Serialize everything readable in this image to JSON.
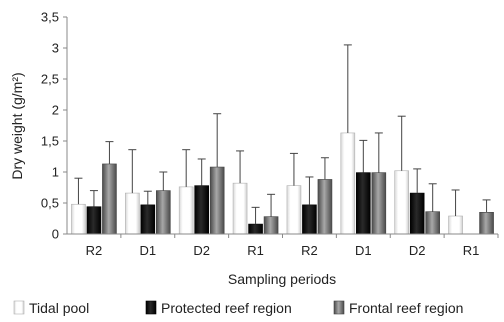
{
  "chart_data": {
    "type": "bar",
    "title": "",
    "xlabel": "Sampling periods",
    "ylabel": "Dry  weight (g/m²)",
    "categories": [
      "R2",
      "D1",
      "D2",
      "R1",
      "R2",
      "D1",
      "D2",
      "R1"
    ],
    "ylim": [
      0,
      3.5
    ],
    "y_ticks": [
      "0",
      "0,5",
      "1",
      "1,5",
      "2",
      "2,5",
      "3",
      "3,5"
    ],
    "grid": false,
    "legend_position": "bottom",
    "error_bars": "upper",
    "series": [
      {
        "name": "Tidal pool",
        "color": "#ffffff",
        "values": [
          0.48,
          0.66,
          0.76,
          0.82,
          0.78,
          1.63,
          1.02,
          0.29
        ],
        "errors": [
          0.42,
          0.7,
          0.6,
          0.52,
          0.52,
          1.42,
          0.88,
          0.42
        ]
      },
      {
        "name": "Protected reef region",
        "color": "#1a1a1a",
        "values": [
          0.44,
          0.47,
          0.78,
          0.16,
          0.47,
          0.99,
          0.66,
          null
        ],
        "errors": [
          0.26,
          0.22,
          0.43,
          0.27,
          0.45,
          0.52,
          0.39,
          null
        ]
      },
      {
        "name": "Frontal reef region",
        "color": "#7a7a7a",
        "values": [
          1.13,
          0.7,
          1.08,
          0.28,
          0.88,
          0.99,
          0.36,
          0.35
        ],
        "errors": [
          0.36,
          0.3,
          0.86,
          0.36,
          0.35,
          0.64,
          0.45,
          0.2
        ]
      }
    ]
  }
}
